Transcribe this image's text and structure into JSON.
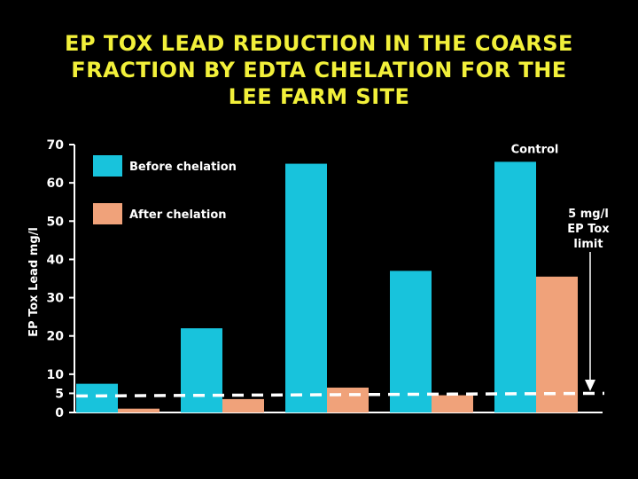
{
  "colors": {
    "background": "#000000",
    "title": "#f2f03a",
    "before": "#18c3dc",
    "after": "#f0a27a",
    "text": "#ffffff"
  },
  "chart_data": {
    "type": "bar",
    "title_lines": [
      "EP TOX LEAD REDUCTION IN THE COARSE",
      "FRACTION BY EDTA CHELATION FOR THE",
      "LEE FARM SITE"
    ],
    "xlabel": "",
    "ylabel": "EP Tox Lead mg/l",
    "ylim": [
      0,
      70
    ],
    "yticks": [
      0,
      5,
      10,
      20,
      30,
      40,
      50,
      60,
      70
    ],
    "categories": [
      "",
      "",
      "",
      "",
      "Control"
    ],
    "series": [
      {
        "name": "Before chelation",
        "values": [
          7.5,
          22,
          65,
          37,
          65.5
        ]
      },
      {
        "name": "After chelation",
        "values": [
          1,
          3.5,
          6.5,
          4.5,
          35.5
        ]
      }
    ],
    "legend_position": "top-left",
    "reference_line": {
      "value": 5,
      "style": "dashed"
    },
    "annotation": {
      "lines": [
        "5 mg/l",
        "EP Tox",
        "limit"
      ]
    }
  }
}
